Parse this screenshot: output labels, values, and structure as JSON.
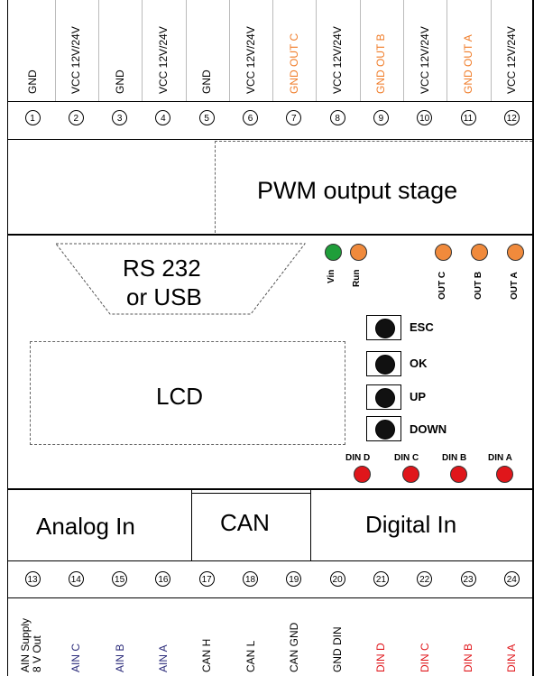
{
  "top_terminals": [
    {
      "pin": "1",
      "label": "GND",
      "color": "#000000"
    },
    {
      "pin": "2",
      "label": "VCC 12V/24V",
      "color": "#000000"
    },
    {
      "pin": "3",
      "label": "GND",
      "color": "#000000"
    },
    {
      "pin": "4",
      "label": "VCC 12V/24V",
      "color": "#000000"
    },
    {
      "pin": "5",
      "label": "GND",
      "color": "#000000"
    },
    {
      "pin": "6",
      "label": "VCC 12V/24V",
      "color": "#000000"
    },
    {
      "pin": "7",
      "label": "GND OUT C",
      "color": "#f07d2a"
    },
    {
      "pin": "8",
      "label": "VCC 12V/24V",
      "color": "#000000"
    },
    {
      "pin": "9",
      "label": "GND OUT B",
      "color": "#f07d2a"
    },
    {
      "pin": "10",
      "label": "VCC 12V/24V",
      "color": "#000000"
    },
    {
      "pin": "11",
      "label": "GND OUT A",
      "color": "#f07d2a"
    },
    {
      "pin": "12",
      "label": "VCC 12V/24V",
      "color": "#000000"
    }
  ],
  "bottom_terminals": [
    {
      "pin": "13",
      "label": "AIN Supply",
      "label2": "8 V Out",
      "color": "#000000"
    },
    {
      "pin": "14",
      "label": "AIN C",
      "color": "#2b2b7a"
    },
    {
      "pin": "15",
      "label": "AIN B",
      "color": "#2b2b7a"
    },
    {
      "pin": "16",
      "label": "AIN A",
      "color": "#2b2b7a"
    },
    {
      "pin": "17",
      "label": "CAN H",
      "color": "#000000"
    },
    {
      "pin": "18",
      "label": "CAN L",
      "color": "#000000"
    },
    {
      "pin": "19",
      "label": "CAN GND",
      "color": "#000000"
    },
    {
      "pin": "20",
      "label": "GND DIN",
      "color": "#000000"
    },
    {
      "pin": "21",
      "label": "DIN D",
      "color": "#e0161b"
    },
    {
      "pin": "22",
      "label": "DIN C",
      "color": "#e0161b"
    },
    {
      "pin": "23",
      "label": "DIN B",
      "color": "#e0161b"
    },
    {
      "pin": "24",
      "label": "DIN A",
      "color": "#e0161b"
    }
  ],
  "blocks": {
    "pwm": "PWM output stage",
    "rs232_line1": "RS 232",
    "rs232_line2": "or USB",
    "lcd": "LCD",
    "analog_in": "Analog In",
    "can": "CAN",
    "digital_in": "Digital In"
  },
  "status_leds": [
    {
      "label": "Vin",
      "color": "#1f9e3a"
    },
    {
      "label": "Run",
      "color": "#f08a3c"
    }
  ],
  "output_leds": [
    {
      "label": "OUT C",
      "color": "#f08a3c"
    },
    {
      "label": "OUT B",
      "color": "#f08a3c"
    },
    {
      "label": "OUT A",
      "color": "#f08a3c"
    }
  ],
  "buttons": [
    "ESC",
    "OK",
    "UP",
    "DOWN"
  ],
  "din_leds": [
    {
      "label": "DIN D",
      "color": "#e0161b"
    },
    {
      "label": "DIN C",
      "color": "#e0161b"
    },
    {
      "label": "DIN B",
      "color": "#e0161b"
    },
    {
      "label": "DIN A",
      "color": "#e0161b"
    }
  ]
}
